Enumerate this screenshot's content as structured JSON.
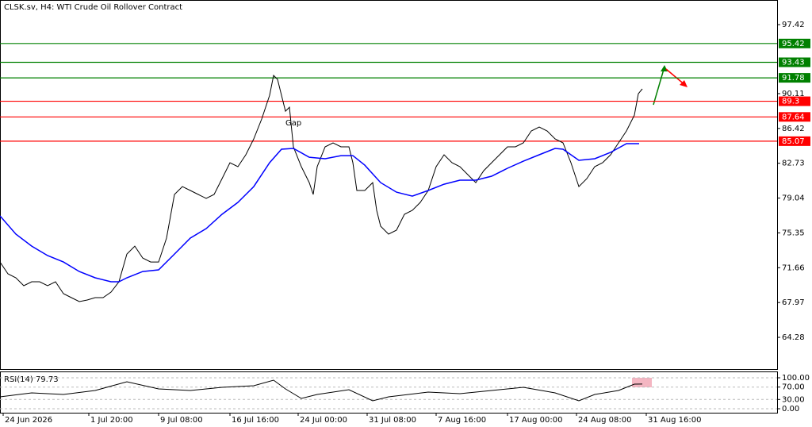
{
  "chart_data": [
    {
      "type": "line",
      "title": "CLSK.sv, H4:  WTI Crude Oil Rollover Contract",
      "annotation": "Gap",
      "xlim": [
        0,
        490
      ],
      "ylim": [
        60.92,
        100.03
      ],
      "xticks": [
        {
          "value": 2,
          "label": "24 Jun 2026"
        },
        {
          "value": 56,
          "label": "1 Jul 20:00"
        },
        {
          "value": 100,
          "label": "9 Jul 08:00"
        },
        {
          "value": 145,
          "label": "16 Jul 16:00"
        },
        {
          "value": 188,
          "label": "24 Jul 00:00"
        },
        {
          "value": 231.5,
          "label": "31 Jul 08:00"
        },
        {
          "value": 275,
          "label": "7 Aug 16:00"
        },
        {
          "value": 320,
          "label": "17 Aug 00:00"
        },
        {
          "value": 363.5,
          "label": "24 Aug 08:00"
        },
        {
          "value": 407.5,
          "label": "31 Aug 16:00"
        }
      ],
      "yticks": [
        97.42,
        90.11,
        86.42,
        82.73,
        79.04,
        75.35,
        71.66,
        67.97,
        64.28
      ],
      "levels": [
        {
          "value": 95.42,
          "color": "#008000"
        },
        {
          "value": 93.43,
          "color": "#008000"
        },
        {
          "value": 91.78,
          "color": "#008000"
        },
        {
          "value": 89.3,
          "color": "#ff0000"
        },
        {
          "value": 87.64,
          "color": "#ff0000"
        },
        {
          "value": 85.07,
          "color": "#ff0000"
        }
      ],
      "series": [
        {
          "color": "#000000",
          "x": [
            0,
            5,
            10,
            15,
            20,
            25,
            30,
            35,
            40,
            45,
            50,
            55,
            60,
            65,
            70,
            75,
            80,
            85,
            90,
            95,
            100,
            105,
            110,
            115,
            120,
            125,
            130,
            135,
            140,
            145,
            150,
            155,
            160,
            165,
            170,
            172.5,
            175,
            177.5,
            180,
            182.5,
            185,
            190,
            195,
            197.5,
            200,
            205,
            210,
            215,
            220,
            222.5,
            225,
            230,
            235,
            237.5,
            240,
            245,
            250,
            255,
            260,
            265,
            270,
            275,
            280,
            285,
            290,
            295,
            300,
            305,
            310,
            315,
            320,
            325,
            330,
            335,
            340,
            345,
            350,
            355,
            360,
            365,
            370,
            375,
            380,
            385,
            390,
            395,
            400,
            402.5,
            405
          ],
          "values": [
            72.27,
            71.01,
            70.59,
            69.75,
            70.17,
            70.17,
            69.75,
            70.17,
            68.91,
            68.49,
            68.07,
            68.24,
            68.49,
            68.49,
            69.08,
            70.17,
            73.11,
            73.95,
            72.69,
            72.27,
            72.27,
            74.8,
            79.42,
            80.26,
            79.84,
            79.42,
            79.0,
            79.42,
            81.1,
            82.79,
            82.37,
            83.63,
            85.31,
            87.41,
            89.93,
            92.04,
            91.62,
            89.93,
            88.25,
            88.67,
            84.47,
            82.37,
            80.68,
            79.42,
            82.37,
            84.47,
            84.89,
            84.47,
            84.47,
            82.79,
            79.84,
            79.84,
            80.68,
            77.74,
            76.06,
            75.22,
            75.64,
            77.32,
            77.74,
            78.58,
            79.84,
            82.37,
            83.63,
            82.79,
            82.37,
            81.52,
            80.68,
            81.94,
            82.79,
            83.63,
            84.47,
            84.47,
            84.89,
            86.15,
            86.57,
            86.15,
            85.31,
            84.89,
            82.79,
            80.26,
            81.1,
            82.37,
            82.79,
            83.63,
            84.89,
            86.15,
            87.83,
            90.1,
            90.61
          ]
        },
        {
          "color": "#0000ff",
          "x": [
            0,
            10,
            20,
            30,
            40,
            50,
            60,
            70,
            75,
            80,
            90,
            100,
            110,
            120,
            130,
            140,
            150,
            160,
            170,
            177.5,
            185,
            195,
            205,
            215,
            222.5,
            230,
            240,
            250,
            260,
            270,
            280,
            290,
            300,
            310,
            320,
            330,
            340,
            350,
            355,
            365,
            375,
            385,
            395,
            403
          ],
          "values": [
            77.15,
            75.22,
            73.95,
            72.95,
            72.27,
            71.26,
            70.59,
            70.17,
            70.17,
            70.59,
            71.26,
            71.43,
            73.11,
            74.8,
            75.81,
            77.32,
            78.58,
            80.26,
            82.79,
            84.22,
            84.3,
            83.37,
            83.21,
            83.54,
            83.54,
            82.53,
            80.68,
            79.67,
            79.25,
            79.84,
            80.51,
            80.94,
            80.94,
            81.36,
            82.2,
            82.95,
            83.63,
            84.3,
            84.22,
            83.04,
            83.21,
            83.88,
            84.81,
            84.81
          ]
        }
      ]
    },
    {
      "type": "line",
      "title": "RSI(14) 79.73",
      "ylim": [
        -12.8,
        120.5
      ],
      "yticks": [
        {
          "value": 100,
          "label": "100.00"
        },
        {
          "value": 70,
          "label": "70.00"
        },
        {
          "value": 30,
          "label": "30.00"
        },
        {
          "value": 0,
          "label": "0.00"
        }
      ],
      "series": [
        {
          "color": "#000000",
          "x": [
            0,
            20,
            40,
            60,
            80,
            100,
            120,
            140,
            160,
            172.5,
            180,
            190,
            200,
            220,
            235,
            245,
            270,
            290,
            310,
            330,
            350,
            365,
            375,
            390,
            400,
            405
          ],
          "values": [
            38.5,
            51.3,
            46.2,
            59,
            87.2,
            64.1,
            59,
            69.2,
            74.4,
            92.3,
            64.1,
            33.3,
            46.2,
            61.5,
            25.6,
            38.5,
            53.8,
            48.7,
            59,
            69.2,
            51.3,
            25.6,
            46.2,
            59,
            79.5,
            79.73
          ]
        }
      ]
    }
  ]
}
